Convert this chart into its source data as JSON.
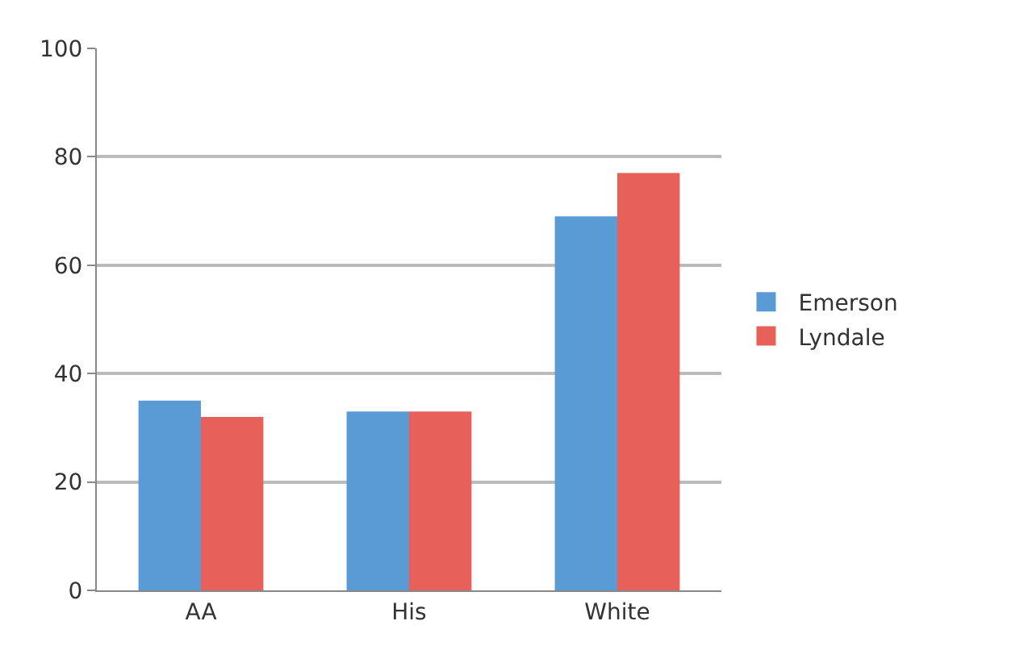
{
  "chart_data": {
    "type": "bar",
    "categories": [
      "AA",
      "His",
      "White"
    ],
    "series": [
      {
        "name": "Emerson",
        "color": "#5b9bd5",
        "values": [
          35,
          33,
          69
        ]
      },
      {
        "name": "Lyndale",
        "color": "#e8605a",
        "values": [
          32,
          33,
          77
        ]
      }
    ],
    "ylim": [
      0,
      100
    ],
    "yticks": [
      0,
      20,
      40,
      60,
      80,
      100
    ],
    "grid": "y",
    "legend": "right"
  }
}
